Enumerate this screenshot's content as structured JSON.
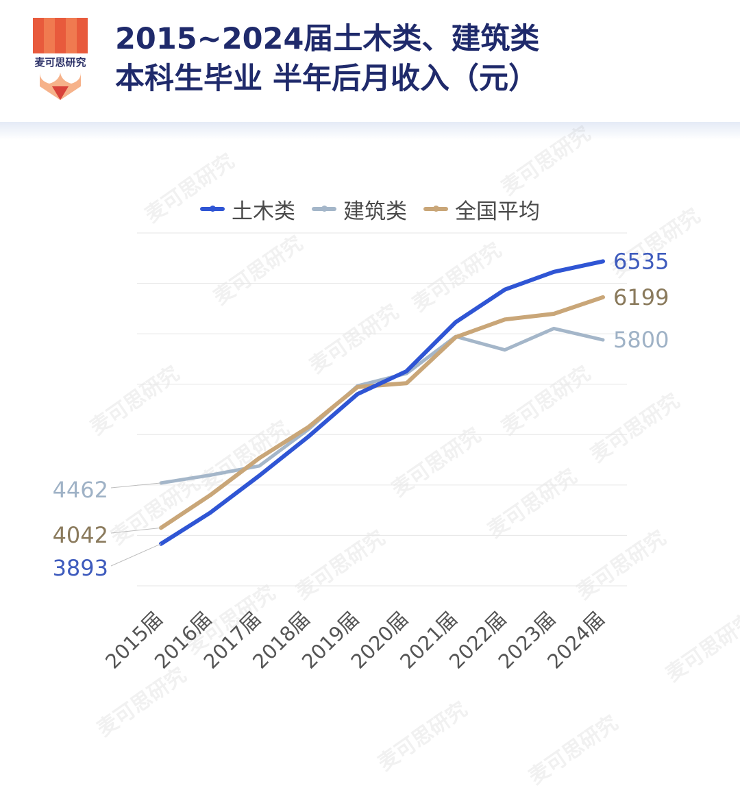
{
  "header": {
    "logo_text": "麦可思研究",
    "title_line1": "2015~2024届土木类、建筑类",
    "title_line2": "本科生毕业 半年后月收入（元）"
  },
  "watermark": "麦可思研究",
  "chart_data": {
    "type": "line",
    "categories": [
      "2015届",
      "2016届",
      "2017届",
      "2018届",
      "2019届",
      "2020届",
      "2021届",
      "2022届",
      "2023届",
      "2024届"
    ],
    "series": [
      {
        "name": "土木类",
        "color": "#2f55d4",
        "values": [
          3893,
          4183,
          4530,
          4895,
          5293,
          5507,
          5966,
          6270,
          6436,
          6535
        ],
        "start_label": "3893",
        "end_label": "6535"
      },
      {
        "name": "建筑类",
        "color": "#a4b6c9",
        "values": [
          4462,
          4535,
          4621,
          4963,
          5370,
          5486,
          5832,
          5706,
          5907,
          5800
        ],
        "start_label": "4462",
        "end_label": "5800"
      },
      {
        "name": "全国平均",
        "color": "#c9a678",
        "values": [
          4042,
          4347,
          4694,
          4984,
          5359,
          5395,
          5825,
          5991,
          6044,
          6199
        ],
        "start_label": "4042",
        "end_label": "6199"
      }
    ],
    "label_colors": {
      "土木类": "#3e5bbd",
      "建筑类": "#9fb2c6",
      "全国平均": "#8a7a5c"
    },
    "ylim": [
      3500,
      6800
    ],
    "grid": true,
    "legend": "top-center"
  }
}
